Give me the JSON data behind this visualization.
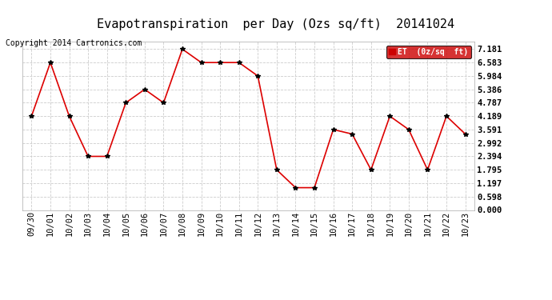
{
  "title": "Evapotranspiration  per Day (Ozs sq/ft)  20141024",
  "copyright": "Copyright 2014 Cartronics.com",
  "legend_label": "ET  (0z/sq  ft)",
  "x_labels": [
    "09/30",
    "10/01",
    "10/02",
    "10/03",
    "10/04",
    "10/05",
    "10/06",
    "10/07",
    "10/08",
    "10/09",
    "10/10",
    "10/11",
    "10/12",
    "10/13",
    "10/14",
    "10/15",
    "10/16",
    "10/17",
    "10/18",
    "10/19",
    "10/20",
    "10/21",
    "10/22",
    "10/23"
  ],
  "y_values": [
    4.189,
    6.583,
    4.189,
    2.394,
    2.394,
    4.787,
    5.386,
    4.787,
    7.181,
    6.583,
    6.583,
    6.583,
    5.984,
    1.795,
    0.997,
    0.997,
    3.591,
    3.392,
    1.795,
    4.189,
    3.591,
    1.795,
    4.189,
    3.392
  ],
  "y_ticks": [
    0.0,
    0.598,
    1.197,
    1.795,
    2.394,
    2.992,
    3.591,
    4.189,
    4.787,
    5.386,
    5.984,
    6.583,
    7.181
  ],
  "ylim": [
    0.0,
    7.5
  ],
  "line_color": "#dd0000",
  "marker_color": "black",
  "bg_color": "#ffffff",
  "grid_color": "#cccccc",
  "legend_bg": "#cc0000",
  "legend_text_color": "#ffffff",
  "title_fontsize": 11,
  "tick_fontsize": 7.5,
  "copyright_fontsize": 7
}
